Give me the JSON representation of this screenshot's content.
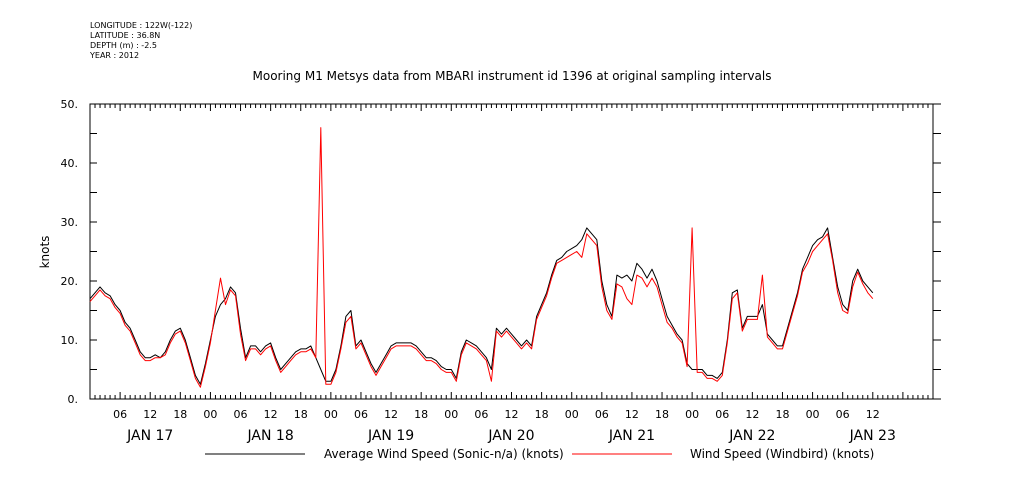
{
  "meta_lines": [
    "LONGITUDE : 122W(-122)",
    "LATITUDE : 36.8N",
    "DEPTH (m) : -2.5",
    "YEAR : 2012"
  ],
  "chart_data": {
    "type": "line",
    "title": "Mooring M1 Metsys data from MBARI instrument id 1396 at original sampling intervals",
    "ylabel": "knots",
    "xlabel": "",
    "ylim": [
      0,
      50
    ],
    "y_ticks": [
      0,
      10,
      20,
      30,
      40,
      50
    ],
    "y_tick_labels": [
      "0.",
      "10.",
      "20.",
      "30.",
      "40.",
      "50."
    ],
    "x_range_hours": [
      0,
      168
    ],
    "x_hour_labels": [
      "06",
      "12",
      "18",
      "00",
      "06",
      "12",
      "18",
      "00",
      "06",
      "12",
      "18",
      "00",
      "06",
      "12",
      "18",
      "00",
      "06",
      "12",
      "18",
      "00",
      "06",
      "12",
      "18",
      "00",
      "06",
      "12"
    ],
    "x_hour_label_positions": [
      6,
      12,
      18,
      24,
      30,
      36,
      42,
      48,
      54,
      60,
      66,
      72,
      78,
      84,
      90,
      96,
      102,
      108,
      114,
      120,
      126,
      132,
      138,
      144,
      150,
      156
    ],
    "x_day_labels": [
      "JAN 17",
      "JAN 18",
      "JAN 19",
      "JAN 20",
      "JAN 21",
      "JAN 22",
      "JAN 23"
    ],
    "x_day_label_positions": [
      12,
      36,
      60,
      84,
      108,
      132,
      156
    ],
    "grid": false,
    "legend_position": "bottom",
    "series": [
      {
        "name": "Average Wind Speed (Sonic-n/a) (knots)",
        "color": "#000000",
        "points": [
          [
            0,
            17
          ],
          [
            1,
            18
          ],
          [
            2,
            19
          ],
          [
            3,
            18
          ],
          [
            4,
            17.5
          ],
          [
            5,
            16
          ],
          [
            6,
            15
          ],
          [
            7,
            13
          ],
          [
            8,
            12
          ],
          [
            9,
            10
          ],
          [
            10,
            8
          ],
          [
            11,
            7
          ],
          [
            12,
            7
          ],
          [
            13,
            7.5
          ],
          [
            14,
            7
          ],
          [
            15,
            8
          ],
          [
            16,
            10
          ],
          [
            17,
            11.5
          ],
          [
            18,
            12
          ],
          [
            19,
            10
          ],
          [
            20,
            7
          ],
          [
            21,
            4
          ],
          [
            22,
            2.5
          ],
          [
            23,
            6
          ],
          [
            24,
            10
          ],
          [
            25,
            14
          ],
          [
            26,
            16
          ],
          [
            27,
            17
          ],
          [
            28,
            19
          ],
          [
            29,
            18
          ],
          [
            30,
            12
          ],
          [
            31,
            7
          ],
          [
            32,
            9
          ],
          [
            33,
            9
          ],
          [
            34,
            8
          ],
          [
            35,
            9
          ],
          [
            36,
            9.5
          ],
          [
            37,
            7
          ],
          [
            38,
            5
          ],
          [
            39,
            6
          ],
          [
            40,
            7
          ],
          [
            41,
            8
          ],
          [
            42,
            8.5
          ],
          [
            43,
            8.5
          ],
          [
            44,
            9
          ],
          [
            45,
            7
          ],
          [
            46,
            5
          ],
          [
            47,
            3
          ],
          [
            48,
            3
          ],
          [
            49,
            5
          ],
          [
            50,
            9
          ],
          [
            51,
            14
          ],
          [
            52,
            15
          ],
          [
            53,
            9
          ],
          [
            54,
            10
          ],
          [
            55,
            8
          ],
          [
            56,
            6
          ],
          [
            57,
            4.5
          ],
          [
            58,
            6
          ],
          [
            59,
            7.5
          ],
          [
            60,
            9
          ],
          [
            61,
            9.5
          ],
          [
            62,
            9.5
          ],
          [
            63,
            9.5
          ],
          [
            64,
            9.5
          ],
          [
            65,
            9
          ],
          [
            66,
            8
          ],
          [
            67,
            7
          ],
          [
            68,
            7
          ],
          [
            69,
            6.5
          ],
          [
            70,
            5.5
          ],
          [
            71,
            5
          ],
          [
            72,
            5
          ],
          [
            73,
            3.5
          ],
          [
            74,
            8
          ],
          [
            75,
            10
          ],
          [
            76,
            9.5
          ],
          [
            77,
            9
          ],
          [
            78,
            8
          ],
          [
            79,
            7
          ],
          [
            80,
            5
          ],
          [
            81,
            12
          ],
          [
            82,
            11
          ],
          [
            83,
            12
          ],
          [
            84,
            11
          ],
          [
            85,
            10
          ],
          [
            86,
            9
          ],
          [
            87,
            10
          ],
          [
            88,
            9
          ],
          [
            89,
            14
          ],
          [
            90,
            16
          ],
          [
            91,
            18
          ],
          [
            92,
            21
          ],
          [
            93,
            23.5
          ],
          [
            94,
            24
          ],
          [
            95,
            25
          ],
          [
            96,
            25.5
          ],
          [
            97,
            26
          ],
          [
            98,
            27
          ],
          [
            99,
            29
          ],
          [
            100,
            28
          ],
          [
            101,
            27
          ],
          [
            102,
            20
          ],
          [
            103,
            16
          ],
          [
            104,
            14
          ],
          [
            105,
            21
          ],
          [
            106,
            20.5
          ],
          [
            107,
            21
          ],
          [
            108,
            20
          ],
          [
            109,
            23
          ],
          [
            110,
            22
          ],
          [
            111,
            20.5
          ],
          [
            112,
            22
          ],
          [
            113,
            20
          ],
          [
            114,
            17
          ],
          [
            115,
            14
          ],
          [
            116,
            12.5
          ],
          [
            117,
            11
          ],
          [
            118,
            10
          ],
          [
            119,
            6
          ],
          [
            120,
            5
          ],
          [
            121,
            5
          ],
          [
            122,
            5
          ],
          [
            123,
            4
          ],
          [
            124,
            4
          ],
          [
            125,
            3.5
          ],
          [
            126,
            4.5
          ],
          [
            127,
            10
          ],
          [
            128,
            18
          ],
          [
            129,
            18.5
          ],
          [
            130,
            12
          ],
          [
            131,
            14
          ],
          [
            132,
            14
          ],
          [
            133,
            14
          ],
          [
            134,
            16
          ],
          [
            135,
            11
          ],
          [
            136,
            10
          ],
          [
            137,
            9
          ],
          [
            138,
            9
          ],
          [
            139,
            12
          ],
          [
            140,
            15
          ],
          [
            141,
            18
          ],
          [
            142,
            22
          ],
          [
            143,
            24
          ],
          [
            144,
            26
          ],
          [
            145,
            27
          ],
          [
            146,
            27.5
          ],
          [
            147,
            29
          ],
          [
            148,
            24
          ],
          [
            149,
            19
          ],
          [
            150,
            16
          ],
          [
            151,
            15
          ],
          [
            152,
            20
          ],
          [
            153,
            22
          ],
          [
            154,
            20
          ],
          [
            155,
            19
          ],
          [
            156,
            18
          ]
        ]
      },
      {
        "name": "Wind Speed (Windbird) (knots)",
        "color": "#ff0000",
        "points": [
          [
            0,
            16.5
          ],
          [
            1,
            17.5
          ],
          [
            2,
            18.5
          ],
          [
            3,
            17.5
          ],
          [
            4,
            17
          ],
          [
            5,
            15.5
          ],
          [
            6,
            14.5
          ],
          [
            7,
            12.5
          ],
          [
            8,
            11.5
          ],
          [
            9,
            9.5
          ],
          [
            10,
            7.5
          ],
          [
            11,
            6.5
          ],
          [
            12,
            6.5
          ],
          [
            13,
            7
          ],
          [
            14,
            7
          ],
          [
            15,
            7.5
          ],
          [
            16,
            9.5
          ],
          [
            17,
            11
          ],
          [
            18,
            11.5
          ],
          [
            19,
            9.5
          ],
          [
            20,
            6.5
          ],
          [
            21,
            3.5
          ],
          [
            22,
            2
          ],
          [
            23,
            5.5
          ],
          [
            24,
            9.5
          ],
          [
            25,
            15
          ],
          [
            26,
            20.5
          ],
          [
            27,
            16
          ],
          [
            28,
            18.5
          ],
          [
            29,
            17.5
          ],
          [
            30,
            11
          ],
          [
            31,
            6.5
          ],
          [
            32,
            8.5
          ],
          [
            33,
            8.5
          ],
          [
            34,
            7.5
          ],
          [
            35,
            8.5
          ],
          [
            36,
            9
          ],
          [
            37,
            6.5
          ],
          [
            38,
            4.5
          ],
          [
            39,
            5.5
          ],
          [
            40,
            6.5
          ],
          [
            41,
            7.5
          ],
          [
            42,
            8
          ],
          [
            43,
            8
          ],
          [
            44,
            8.5
          ],
          [
            45,
            7
          ],
          [
            46,
            46
          ],
          [
            47,
            2.5
          ],
          [
            48,
            2.5
          ],
          [
            49,
            4.5
          ],
          [
            50,
            8.5
          ],
          [
            51,
            13
          ],
          [
            52,
            14
          ],
          [
            53,
            8.5
          ],
          [
            54,
            9.5
          ],
          [
            55,
            7.5
          ],
          [
            56,
            5.5
          ],
          [
            57,
            4
          ],
          [
            58,
            5.5
          ],
          [
            59,
            7
          ],
          [
            60,
            8.5
          ],
          [
            61,
            9
          ],
          [
            62,
            9
          ],
          [
            63,
            9
          ],
          [
            64,
            9
          ],
          [
            65,
            8.5
          ],
          [
            66,
            7.5
          ],
          [
            67,
            6.5
          ],
          [
            68,
            6.5
          ],
          [
            69,
            6
          ],
          [
            70,
            5
          ],
          [
            71,
            4.5
          ],
          [
            72,
            4.5
          ],
          [
            73,
            3
          ],
          [
            74,
            7.5
          ],
          [
            75,
            9.5
          ],
          [
            76,
            9
          ],
          [
            77,
            8.5
          ],
          [
            78,
            7.5
          ],
          [
            79,
            6.5
          ],
          [
            80,
            3
          ],
          [
            81,
            11.5
          ],
          [
            82,
            10.5
          ],
          [
            83,
            11.5
          ],
          [
            84,
            10.5
          ],
          [
            85,
            9.5
          ],
          [
            86,
            8.5
          ],
          [
            87,
            9.5
          ],
          [
            88,
            8.5
          ],
          [
            89,
            13.5
          ],
          [
            90,
            15.5
          ],
          [
            91,
            17.5
          ],
          [
            92,
            20.5
          ],
          [
            93,
            23
          ],
          [
            94,
            23.5
          ],
          [
            95,
            24
          ],
          [
            96,
            24.5
          ],
          [
            97,
            25
          ],
          [
            98,
            24
          ],
          [
            99,
            28
          ],
          [
            100,
            27
          ],
          [
            101,
            26
          ],
          [
            102,
            19
          ],
          [
            103,
            15
          ],
          [
            104,
            13.5
          ],
          [
            105,
            19.5
          ],
          [
            106,
            19
          ],
          [
            107,
            17
          ],
          [
            108,
            16
          ],
          [
            109,
            21
          ],
          [
            110,
            20.5
          ],
          [
            111,
            19
          ],
          [
            112,
            20.5
          ],
          [
            113,
            19
          ],
          [
            114,
            16
          ],
          [
            115,
            13
          ],
          [
            116,
            12
          ],
          [
            117,
            10.5
          ],
          [
            118,
            9.5
          ],
          [
            119,
            5.5
          ],
          [
            120,
            29
          ],
          [
            121,
            4.5
          ],
          [
            122,
            4.5
          ],
          [
            123,
            3.5
          ],
          [
            124,
            3.5
          ],
          [
            125,
            3
          ],
          [
            126,
            4
          ],
          [
            127,
            9.5
          ],
          [
            128,
            17
          ],
          [
            129,
            18
          ],
          [
            130,
            11.5
          ],
          [
            131,
            13.5
          ],
          [
            132,
            13.5
          ],
          [
            133,
            13.5
          ],
          [
            134,
            21
          ],
          [
            135,
            10.5
          ],
          [
            136,
            9.5
          ],
          [
            137,
            8.5
          ],
          [
            138,
            8.5
          ],
          [
            139,
            11.5
          ],
          [
            140,
            14.5
          ],
          [
            141,
            17.5
          ],
          [
            142,
            21.5
          ],
          [
            143,
            23
          ],
          [
            144,
            25
          ],
          [
            145,
            26
          ],
          [
            146,
            27
          ],
          [
            147,
            28
          ],
          [
            148,
            23.5
          ],
          [
            149,
            18
          ],
          [
            150,
            15
          ],
          [
            151,
            14.5
          ],
          [
            152,
            19
          ],
          [
            153,
            21.5
          ],
          [
            154,
            19.5
          ],
          [
            155,
            18
          ],
          [
            156,
            17
          ]
        ]
      }
    ]
  }
}
